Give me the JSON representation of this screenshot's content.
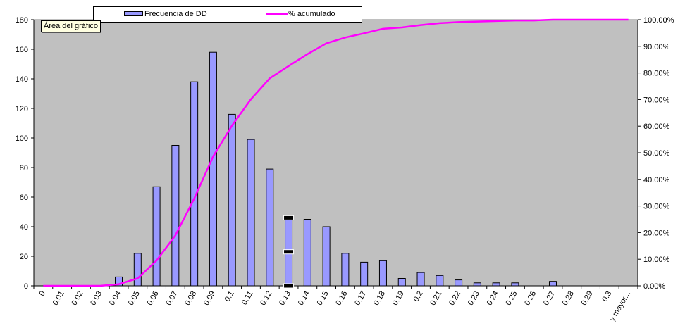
{
  "tooltip": "Área del gráfico",
  "chart_data": {
    "type": "bar",
    "categories": [
      "0",
      "0.01",
      "0.02",
      "0.03",
      "0.04",
      "0.05",
      "0.06",
      "0.07",
      "0.08",
      "0.09",
      "0.1",
      "0.11",
      "0.12",
      "0.13",
      "0.14",
      "0.15",
      "0.16",
      "0.17",
      "0.18",
      "0.19",
      "0.2",
      "0.21",
      "0.22",
      "0.23",
      "0.24",
      "0.25",
      "0.26",
      "0.27",
      "0.28",
      "0.29",
      "0.3",
      "y mayor..."
    ],
    "series": [
      {
        "name": "Frecuencia de DD",
        "type": "bar",
        "axis": "left",
        "color": "#9999ff",
        "values": [
          0,
          0,
          0,
          0,
          6,
          22,
          67,
          95,
          138,
          158,
          116,
          99,
          79,
          46,
          45,
          40,
          22,
          16,
          17,
          5,
          9,
          7,
          4,
          2,
          2,
          2,
          0,
          3,
          0,
          0,
          0,
          0
        ]
      },
      {
        "name": "% acumulado",
        "type": "line",
        "axis": "right",
        "color": "#ff00ff",
        "values": [
          0,
          0,
          0,
          0,
          0.6,
          2.8,
          9.5,
          19.0,
          32.8,
          48.6,
          60.2,
          70.1,
          78.0,
          82.6,
          87.1,
          91.1,
          93.3,
          94.9,
          96.6,
          97.1,
          98.0,
          98.7,
          99.1,
          99.3,
          99.5,
          99.7,
          99.7,
          100.0,
          100.0,
          100.0,
          100.0,
          100.0
        ]
      }
    ],
    "ylim": [
      0,
      180
    ],
    "yticks": [
      "0",
      "20",
      "40",
      "60",
      "80",
      "100",
      "120",
      "140",
      "160",
      "180"
    ],
    "y2lim": [
      0,
      100
    ],
    "y2ticks": [
      "0.00%",
      "10.00%",
      "20.00%",
      "30.00%",
      "40.00%",
      "50.00%",
      "60.00%",
      "70.00%",
      "80.00%",
      "90.00%",
      "100.00%"
    ],
    "plot_background": "#c0c0c0",
    "legend_position": "top",
    "grid": false
  }
}
